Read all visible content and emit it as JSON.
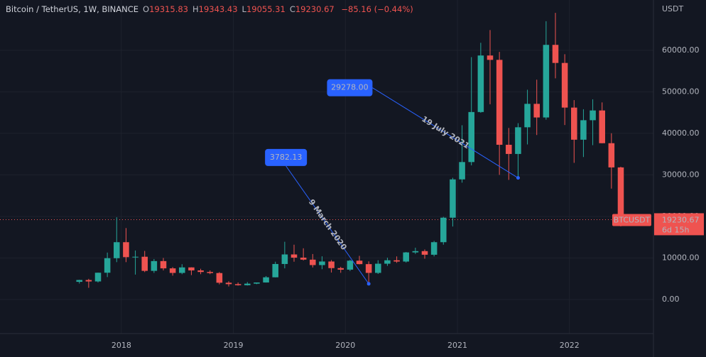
{
  "chart_data": {
    "type": "candlestick",
    "title": "Bitcoin / TetherUS, 1W, BINANCE",
    "ohlc_header": [
      {
        "label": "O",
        "value": 19315.83
      },
      {
        "label": "H",
        "value": 19343.43
      },
      {
        "label": "L",
        "value": 19055.31
      },
      {
        "label": "C",
        "value": 19230.67
      }
    ],
    "change": "−85.16 (−0.44%)",
    "y_unit": "USDT",
    "up_color": "#26a69a",
    "down_color": "#ef5350",
    "grid": true,
    "x": [
      "2017-08",
      "2017-09",
      "2017-10",
      "2017-11",
      "2017-12",
      "2018-01",
      "2018-02",
      "2018-03",
      "2018-04",
      "2018-05",
      "2018-06",
      "2018-07",
      "2018-08",
      "2018-09",
      "2018-10",
      "2018-11",
      "2018-12",
      "2019-01",
      "2019-02",
      "2019-03",
      "2019-04",
      "2019-05",
      "2019-06",
      "2019-07",
      "2019-08",
      "2019-09",
      "2019-10",
      "2019-11",
      "2019-12",
      "2020-01",
      "2020-02",
      "2020-03",
      "2020-04",
      "2020-05",
      "2020-06",
      "2020-07",
      "2020-08",
      "2020-09",
      "2020-10",
      "2020-11",
      "2020-12",
      "2021-01",
      "2021-02",
      "2021-03",
      "2021-04",
      "2021-05",
      "2021-06",
      "2021-07",
      "2021-08",
      "2021-09",
      "2021-10",
      "2021-11",
      "2021-12",
      "2022-01",
      "2022-02",
      "2022-03",
      "2022-04",
      "2022-05",
      "2022-06"
    ],
    "open": [
      4260,
      4690,
      4350,
      6450,
      9950,
      13800,
      10200,
      10300,
      6900,
      9250,
      7500,
      6400,
      7730,
      7000,
      6630,
      6370,
      4040,
      3700,
      3440,
      3820,
      4100,
      5350,
      8550,
      10850,
      10080,
      9600,
      8290,
      9150,
      7560,
      7190,
      9350,
      8520,
      6410,
      8620,
      9450,
      9140,
      11340,
      11650,
      10780,
      13800,
      19700,
      28920,
      33090,
      45130,
      58740,
      57690,
      37250,
      35040,
      41460,
      47100,
      43820,
      61300,
      56950,
      46200,
      38470,
      43160,
      45510,
      37630,
      31800
    ],
    "high": [
      4750,
      4980,
      6470,
      11300,
      19800,
      17200,
      11800,
      11700,
      9750,
      10000,
      7800,
      8500,
      7760,
      7400,
      7000,
      6600,
      4400,
      4100,
      4200,
      4100,
      5650,
      9100,
      13900,
      13200,
      12330,
      10950,
      10400,
      9500,
      7870,
      9580,
      10500,
      9190,
      9460,
      10070,
      10380,
      11440,
      12470,
      12050,
      14100,
      19900,
      29300,
      41950,
      58350,
      61800,
      64850,
      59600,
      41300,
      42450,
      50500,
      52920,
      67000,
      69000,
      59050,
      48000,
      45800,
      48190,
      47450,
      40020,
      31980
    ],
    "low": [
      3850,
      2820,
      4100,
      5400,
      9000,
      9000,
      6000,
      6600,
      6400,
      7000,
      5750,
      6100,
      5880,
      6100,
      6100,
      3650,
      3150,
      3350,
      3370,
      3700,
      4080,
      5330,
      7500,
      9100,
      9400,
      7710,
      7300,
      6500,
      6430,
      6850,
      8450,
      3782.13,
      6150,
      8100,
      8830,
      8900,
      10980,
      9820,
      10370,
      13200,
      17570,
      28130,
      32300,
      44950,
      47000,
      30000,
      28800,
      29278,
      37330,
      39600,
      43280,
      53250,
      42000,
      32900,
      34300,
      37150,
      37600,
      26700,
      17600
    ],
    "close": [
      4700,
      4350,
      6450,
      9950,
      13800,
      10200,
      10300,
      6900,
      9250,
      7500,
      6400,
      7730,
      7000,
      6630,
      6370,
      4040,
      3700,
      3440,
      3820,
      4100,
      5350,
      8550,
      10850,
      10080,
      9600,
      8290,
      9150,
      7560,
      7190,
      9350,
      8520,
      6410,
      8620,
      9450,
      9140,
      11340,
      11650,
      10780,
      13800,
      19700,
      28920,
      33090,
      45130,
      58740,
      57690,
      37250,
      35040,
      41460,
      47100,
      43820,
      61300,
      56950,
      46200,
      38470,
      43160,
      45510,
      37630,
      31800,
      19230.67
    ],
    "xlim": [
      "2016-12",
      "2022-10"
    ],
    "xticks": [
      {
        "value": "2018-01",
        "label": "2018"
      },
      {
        "value": "2019-01",
        "label": "2019"
      },
      {
        "value": "2020-01",
        "label": "2020"
      },
      {
        "value": "2021-01",
        "label": "2021"
      },
      {
        "value": "2022-01",
        "label": "2022"
      }
    ],
    "ylim": [
      -8200,
      72100
    ],
    "yticks": [
      {
        "value": 0,
        "label": "0.00"
      },
      {
        "value": 10000,
        "label": "10000.00"
      },
      {
        "value": 20000,
        "label": "20000.00"
      },
      {
        "value": 30000,
        "label": "30000.00"
      },
      {
        "value": 40000,
        "label": "40000.00"
      },
      {
        "value": 50000,
        "label": "50000.00"
      },
      {
        "value": 60000,
        "label": "60000.00"
      }
    ],
    "annotations": [
      {
        "x": "2020-03",
        "value": 3782.13,
        "label": "3782.13",
        "text": "9 March 2020"
      },
      {
        "x": "2021-07",
        "value": 29278,
        "label": "29278.00",
        "text": "19 July 2021"
      }
    ],
    "last_price": {
      "symbol": "BTCUSDT",
      "value": 19230.67,
      "label": "19230.67",
      "countdown": "6d 15h",
      "color": "#ef5350"
    }
  }
}
